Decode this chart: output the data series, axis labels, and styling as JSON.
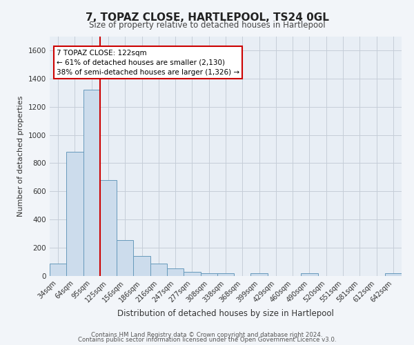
{
  "title": "7, TOPAZ CLOSE, HARTLEPOOL, TS24 0GL",
  "subtitle": "Size of property relative to detached houses in Hartlepool",
  "xlabel": "Distribution of detached houses by size in Hartlepool",
  "ylabel": "Number of detached properties",
  "bar_color": "#ccdcec",
  "bar_edge_color": "#6699bb",
  "categories": [
    "34sqm",
    "64sqm",
    "95sqm",
    "125sqm",
    "156sqm",
    "186sqm",
    "216sqm",
    "247sqm",
    "277sqm",
    "308sqm",
    "338sqm",
    "368sqm",
    "399sqm",
    "429sqm",
    "460sqm",
    "490sqm",
    "520sqm",
    "551sqm",
    "581sqm",
    "612sqm",
    "642sqm"
  ],
  "values": [
    87,
    880,
    1320,
    680,
    252,
    143,
    87,
    55,
    28,
    22,
    18,
    0,
    18,
    0,
    0,
    18,
    0,
    0,
    0,
    0,
    18
  ],
  "ylim": [
    0,
    1700
  ],
  "yticks": [
    0,
    200,
    400,
    600,
    800,
    1000,
    1200,
    1400,
    1600
  ],
  "vline_color": "#cc0000",
  "annotation_line1": "7 TOPAZ CLOSE: 122sqm",
  "annotation_line2": "← 61% of detached houses are smaller (2,130)",
  "annotation_line3": "38% of semi-detached houses are larger (1,326) →",
  "annotation_box_color": "#ffffff",
  "annotation_box_edge": "#cc0000",
  "footer1": "Contains HM Land Registry data © Crown copyright and database right 2024.",
  "footer2": "Contains public sector information licensed under the Open Government Licence v3.0.",
  "background_color": "#f2f5f9",
  "plot_bg_color": "#e8eef5",
  "grid_color": "#c5cdd8"
}
